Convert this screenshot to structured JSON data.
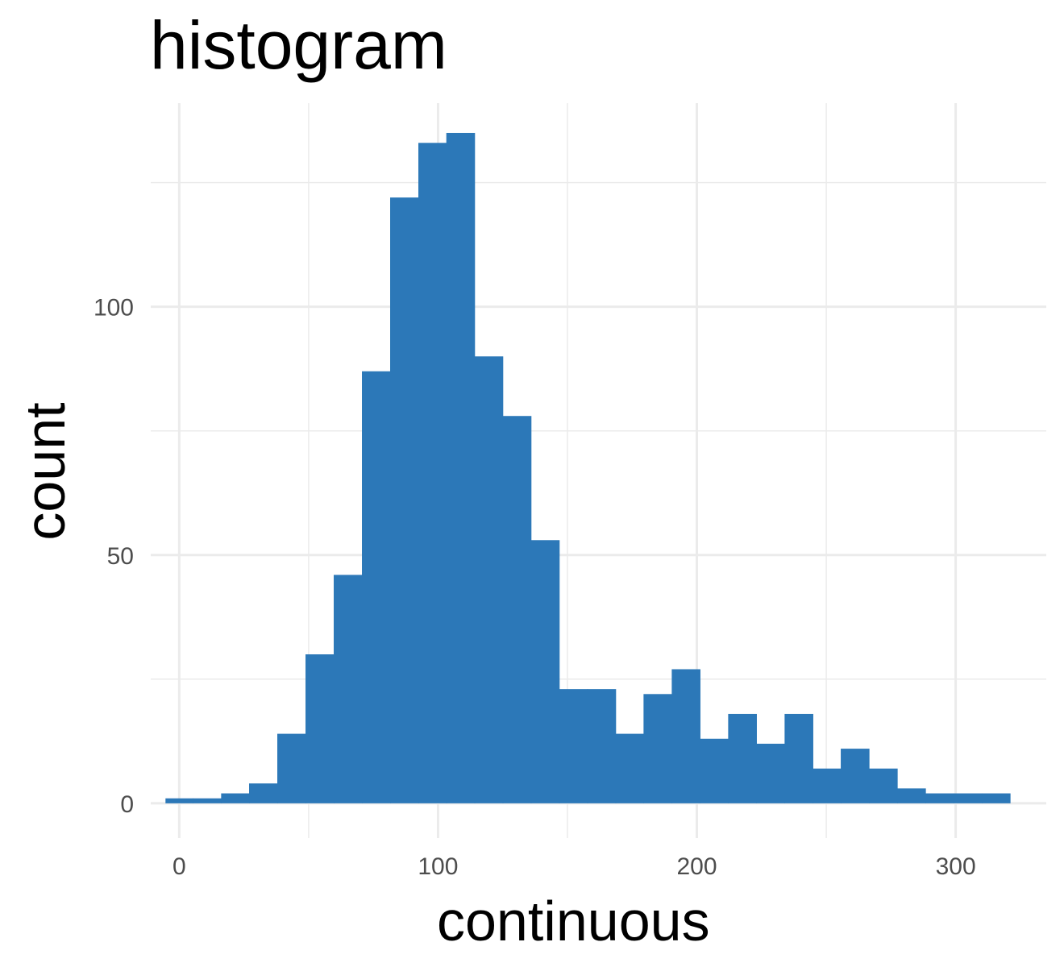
{
  "chart_data": {
    "type": "bar",
    "title": "histogram",
    "xlabel": "continuous",
    "ylabel": "count",
    "bar_color": "#2C78B8",
    "grid": true,
    "xlim": [
      -11,
      335
    ],
    "ylim": [
      -7,
      141
    ],
    "x_ticks": [
      0,
      100,
      200,
      300
    ],
    "x_tick_labels": [
      "0",
      "100",
      "200",
      "300"
    ],
    "y_ticks": [
      0,
      50,
      100
    ],
    "y_tick_labels": [
      "0",
      "50",
      "100"
    ],
    "y_minor_ticks": [
      25,
      75,
      125
    ],
    "bins": [
      {
        "x0": -5.3,
        "x1": 5.3,
        "count": 1
      },
      {
        "x0": 5.3,
        "x1": 16.2,
        "count": 1
      },
      {
        "x0": 16.2,
        "x1": 27.0,
        "count": 2
      },
      {
        "x0": 27.0,
        "x1": 37.9,
        "count": 4
      },
      {
        "x0": 37.9,
        "x1": 48.8,
        "count": 14
      },
      {
        "x0": 48.8,
        "x1": 59.7,
        "count": 30
      },
      {
        "x0": 59.7,
        "x1": 70.6,
        "count": 46
      },
      {
        "x0": 70.6,
        "x1": 81.5,
        "count": 87
      },
      {
        "x0": 81.5,
        "x1": 92.4,
        "count": 122
      },
      {
        "x0": 92.4,
        "x1": 103.2,
        "count": 133
      },
      {
        "x0": 103.2,
        "x1": 114.1,
        "count": 135
      },
      {
        "x0": 114.1,
        "x1": 125.0,
        "count": 90
      },
      {
        "x0": 125.0,
        "x1": 135.9,
        "count": 78
      },
      {
        "x0": 135.9,
        "x1": 146.8,
        "count": 53
      },
      {
        "x0": 146.8,
        "x1": 157.7,
        "count": 23
      },
      {
        "x0": 157.7,
        "x1": 168.6,
        "count": 23
      },
      {
        "x0": 168.6,
        "x1": 179.4,
        "count": 14
      },
      {
        "x0": 179.4,
        "x1": 190.3,
        "count": 22
      },
      {
        "x0": 190.3,
        "x1": 201.2,
        "count": 27
      },
      {
        "x0": 201.2,
        "x1": 212.1,
        "count": 13
      },
      {
        "x0": 212.1,
        "x1": 223.0,
        "count": 18
      },
      {
        "x0": 223.0,
        "x1": 233.9,
        "count": 12
      },
      {
        "x0": 233.9,
        "x1": 244.8,
        "count": 18
      },
      {
        "x0": 244.8,
        "x1": 255.6,
        "count": 7
      },
      {
        "x0": 255.6,
        "x1": 266.5,
        "count": 11
      },
      {
        "x0": 266.5,
        "x1": 277.4,
        "count": 7
      },
      {
        "x0": 277.4,
        "x1": 288.3,
        "count": 3
      },
      {
        "x0": 288.3,
        "x1": 299.2,
        "count": 2
      },
      {
        "x0": 299.2,
        "x1": 310.1,
        "count": 2
      },
      {
        "x0": 310.1,
        "x1": 321.0,
        "count": 2
      }
    ]
  }
}
